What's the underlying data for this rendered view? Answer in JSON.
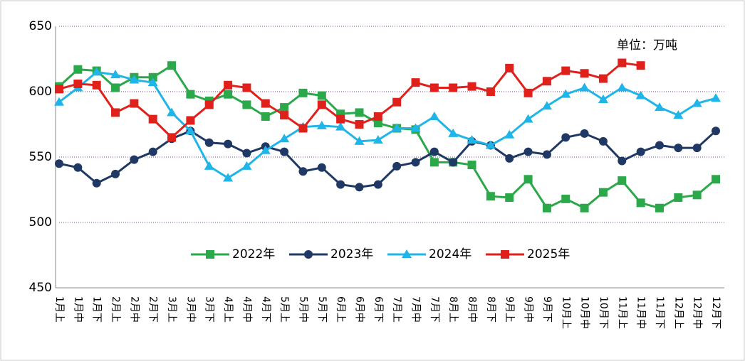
{
  "chart_data": {
    "type": "line",
    "annotation": "单位：万吨",
    "categories": [
      "1月上",
      "1月中",
      "1月下",
      "2月上",
      "2月中",
      "2月下",
      "3月上",
      "3月中",
      "3月下",
      "4月上",
      "4月中",
      "4月下",
      "5月上",
      "5月中",
      "5月下",
      "6月上",
      "6月中",
      "6月下",
      "7月上",
      "7月中",
      "7月下",
      "8月上",
      "8月中",
      "8月下",
      "9月上",
      "9月中",
      "9月下",
      "10月上",
      "10月中",
      "10月下",
      "11月上",
      "11月中",
      "11月下",
      "12月上",
      "12月中",
      "12月下"
    ],
    "series": [
      {
        "name": "2022年",
        "color": "#2aa84a",
        "marker": "square",
        "values": [
          604,
          617,
          616,
          603,
          611,
          611,
          620,
          598,
          593,
          598,
          590,
          581,
          588,
          599,
          597,
          583,
          584,
          576,
          572,
          571,
          546,
          546,
          544,
          520,
          519,
          533,
          511,
          518,
          511,
          523,
          532,
          515,
          511,
          519,
          521,
          533
        ]
      },
      {
        "name": "2023年",
        "color": "#1f3864",
        "marker": "circle",
        "values": [
          545,
          542,
          530,
          537,
          548,
          554,
          564,
          570,
          561,
          560,
          553,
          558,
          554,
          539,
          542,
          529,
          527,
          529,
          543,
          546,
          554,
          546,
          562,
          559,
          549,
          554,
          552,
          565,
          568,
          562,
          547,
          554,
          559,
          557,
          557,
          570
        ]
      },
      {
        "name": "2024年",
        "color": "#1fb5e8",
        "marker": "triangle",
        "values": [
          592,
          603,
          615,
          613,
          609,
          607,
          584,
          570,
          543,
          534,
          543,
          555,
          564,
          573,
          574,
          573,
          562,
          563,
          572,
          572,
          581,
          568,
          563,
          559,
          567,
          579,
          589,
          598,
          603,
          594,
          603,
          597,
          588,
          582,
          591,
          595
        ]
      },
      {
        "name": "2025年",
        "color": "#e0201b",
        "marker": "square",
        "values": [
          602,
          606,
          605,
          584,
          591,
          579,
          565,
          578,
          590,
          605,
          603,
          591,
          582,
          572,
          590,
          579,
          575,
          581,
          592,
          607,
          603,
          603,
          604,
          600,
          618,
          599,
          608,
          616,
          614,
          610,
          622,
          620,
          null,
          null,
          null,
          null
        ]
      }
    ],
    "ylim": [
      450,
      650
    ],
    "yticks": [
      450,
      500,
      550,
      600,
      650
    ],
    "grid": true
  }
}
